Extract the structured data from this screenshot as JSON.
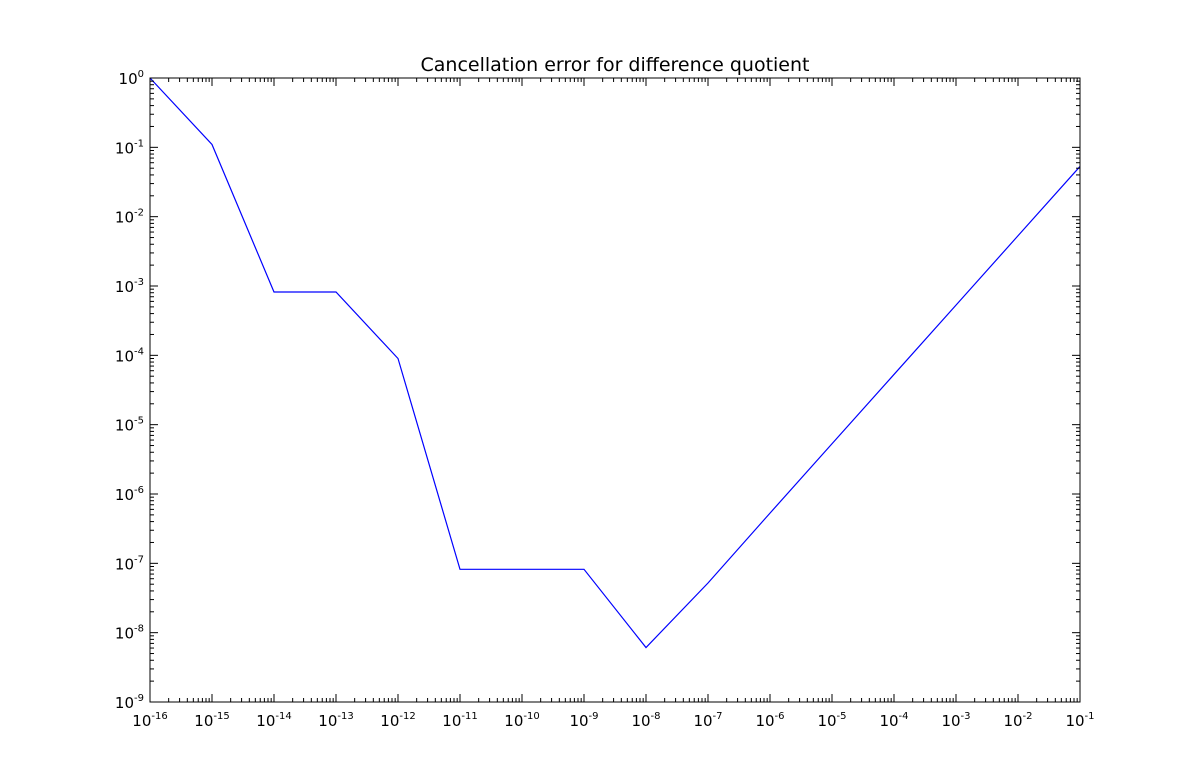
{
  "chart_data": {
    "type": "line",
    "title": "Cancellation error for difference quotient",
    "xlabel": "",
    "ylabel": "",
    "x_scale": "log",
    "y_scale": "log",
    "xlim": [
      1e-16,
      0.1
    ],
    "ylim": [
      1e-09,
      1
    ],
    "grid": false,
    "x_ticks": [
      {
        "base": "10",
        "exp": "-16"
      },
      {
        "base": "10",
        "exp": "-15"
      },
      {
        "base": "10",
        "exp": "-14"
      },
      {
        "base": "10",
        "exp": "-13"
      },
      {
        "base": "10",
        "exp": "-12"
      },
      {
        "base": "10",
        "exp": "-11"
      },
      {
        "base": "10",
        "exp": "-10"
      },
      {
        "base": "10",
        "exp": "-9"
      },
      {
        "base": "10",
        "exp": "-8"
      },
      {
        "base": "10",
        "exp": "-7"
      },
      {
        "base": "10",
        "exp": "-6"
      },
      {
        "base": "10",
        "exp": "-5"
      },
      {
        "base": "10",
        "exp": "-4"
      },
      {
        "base": "10",
        "exp": "-3"
      },
      {
        "base": "10",
        "exp": "-2"
      },
      {
        "base": "10",
        "exp": "-1"
      }
    ],
    "y_ticks": [
      {
        "base": "10",
        "exp": "0"
      },
      {
        "base": "10",
        "exp": "-1"
      },
      {
        "base": "10",
        "exp": "-2"
      },
      {
        "base": "10",
        "exp": "-3"
      },
      {
        "base": "10",
        "exp": "-4"
      },
      {
        "base": "10",
        "exp": "-5"
      },
      {
        "base": "10",
        "exp": "-6"
      },
      {
        "base": "10",
        "exp": "-7"
      },
      {
        "base": "10",
        "exp": "-8"
      },
      {
        "base": "10",
        "exp": "-9"
      }
    ],
    "series": [
      {
        "color": "#0000ff",
        "x": [
          1e-16,
          1e-15,
          1e-14,
          1e-13,
          1e-12,
          1e-11,
          1e-10,
          1e-09,
          1e-08,
          1e-07,
          1e-06,
          1e-05,
          0.0001,
          0.001,
          0.01,
          0.1
        ],
        "y": [
          1.0,
          0.11,
          0.00082,
          0.00082,
          9e-05,
          8.2e-08,
          8.2e-08,
          8.2e-08,
          6.1e-09,
          5.2e-08,
          5.3e-07,
          5.3e-06,
          5.3e-05,
          0.00053,
          0.0053,
          0.053
        ]
      }
    ]
  }
}
